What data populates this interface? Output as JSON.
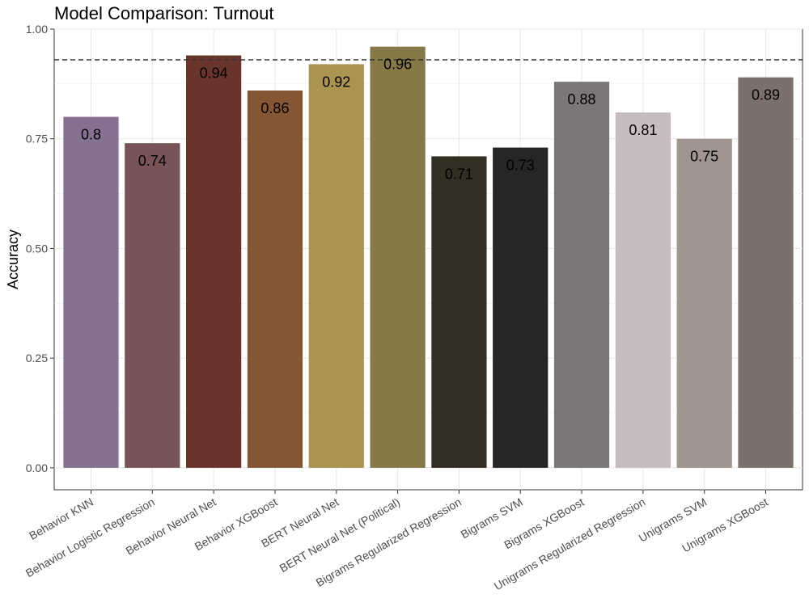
{
  "chart_data": {
    "type": "bar",
    "title": "Model Comparison: Turnout",
    "xlabel": "",
    "ylabel": "Accuracy",
    "ylim": [
      -0.05,
      1.0
    ],
    "yticks": [
      "0.00",
      "0.25",
      "0.50",
      "0.75",
      "1.00"
    ],
    "ytick_values": [
      0,
      0.25,
      0.5,
      0.75,
      1.0
    ],
    "reference_line": {
      "value": 0.93,
      "style": "dashed",
      "color": "#333333"
    },
    "grid": true,
    "categories": [
      "Behavior KNN",
      "Behavior Logistic Regression",
      "Behavior Neural Net",
      "Behavior XGBoost",
      "BERT Neural Net",
      "BERT Neural Net (Political)",
      "Bigrams Regularized Regression",
      "Bigrams SVM",
      "Bigrams XGBoost",
      "Unigrams Regularized Regression",
      "Unigrams SVM",
      "Unigrams XGBoost"
    ],
    "values": [
      0.8,
      0.74,
      0.94,
      0.86,
      0.92,
      0.96,
      0.71,
      0.73,
      0.88,
      0.81,
      0.75,
      0.89
    ],
    "labels": [
      "0.8",
      "0.74",
      "0.94",
      "0.86",
      "0.92",
      "0.96",
      "0.71",
      "0.73",
      "0.88",
      "0.81",
      "0.75",
      "0.89"
    ],
    "colors": [
      "#877193",
      "#785459",
      "#69342b",
      "#845633",
      "#ab9350",
      "#857a46",
      "#332e22",
      "#272626",
      "#7b7678",
      "#c7bcc0",
      "#a1958f",
      "#7c716a"
    ]
  }
}
